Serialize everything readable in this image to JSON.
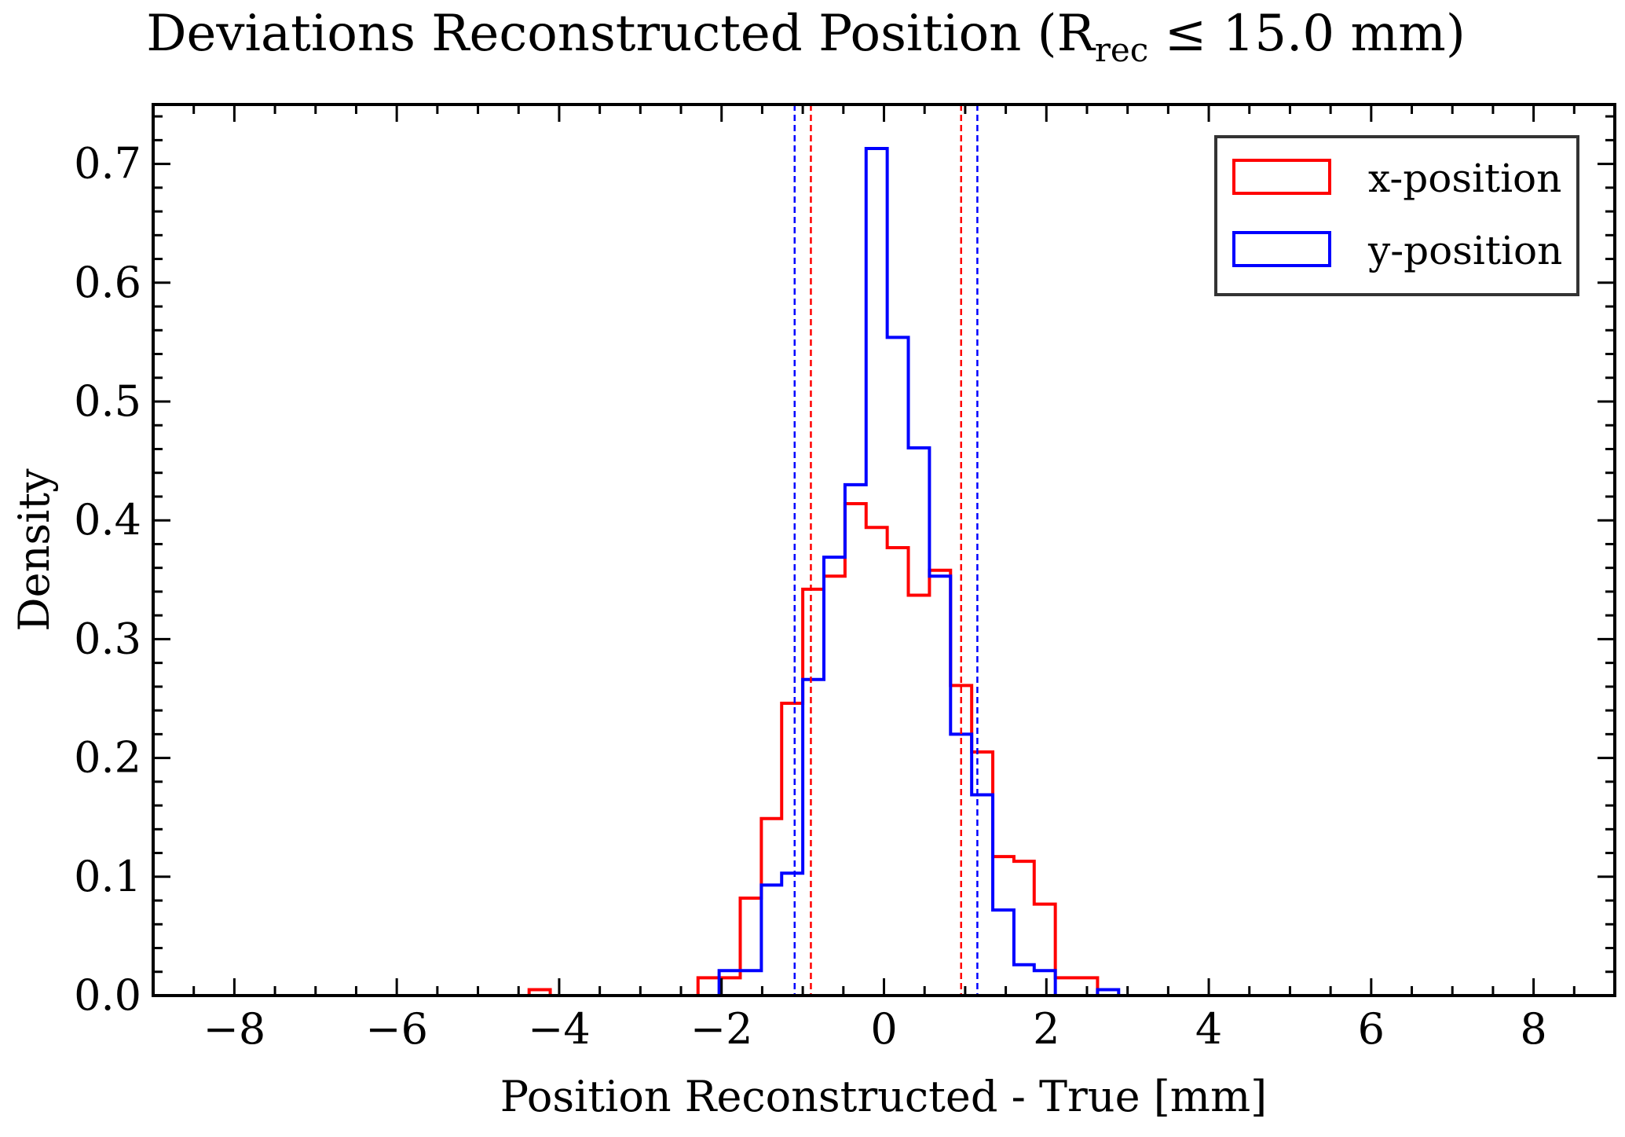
{
  "chart_data": {
    "type": "histogram",
    "title": {
      "main": "Deviations Reconstructed Position (R",
      "subscript": "rec",
      "rest": " ≤ 15.0 mm)"
    },
    "xlabel": "Position Reconstructed - True [mm]",
    "ylabel": "Density",
    "xlim": [
      -9,
      9
    ],
    "ylim": [
      0,
      0.75
    ],
    "x_ticks": [
      -8,
      -6,
      -4,
      -2,
      0,
      2,
      4,
      6,
      8
    ],
    "x_tick_labels": [
      "−8",
      "−6",
      "−4",
      "−2",
      "0",
      "2",
      "4",
      "6",
      "8"
    ],
    "y_ticks": [
      0.0,
      0.1,
      0.2,
      0.3,
      0.4,
      0.5,
      0.6,
      0.7
    ],
    "y_tick_labels": [
      "0.0",
      "0.1",
      "0.2",
      "0.3",
      "0.4",
      "0.5",
      "0.6",
      "0.7"
    ],
    "legend_position": "top-right",
    "grid": false,
    "series": [
      {
        "name": "x-position",
        "color": "#ff0000",
        "bin_edges": [
          -4.37,
          -4.11,
          -2.29,
          -2.03,
          -1.77,
          -1.51,
          -1.26,
          -1.0,
          -0.74,
          -0.48,
          -0.22,
          0.04,
          0.3,
          0.56,
          0.82,
          1.08,
          1.34,
          1.6,
          1.85,
          2.11,
          2.63
        ],
        "values": [
          0.005,
          0,
          0.015,
          0.015,
          0.082,
          0.149,
          0.246,
          0.342,
          0.353,
          0.414,
          0.394,
          0.377,
          0.337,
          0.358,
          0.261,
          0.205,
          0.117,
          0.113,
          0.077,
          0.015
        ],
        "mean_minus_sigma": -0.9,
        "mean_plus_sigma": 0.95
      },
      {
        "name": "y-position",
        "color": "#0000ff",
        "bin_edges": [
          -2.03,
          -1.77,
          -1.51,
          -1.26,
          -1.0,
          -0.74,
          -0.48,
          -0.22,
          0.04,
          0.3,
          0.56,
          0.82,
          1.08,
          1.34,
          1.6,
          1.85,
          2.11,
          2.37,
          2.63,
          2.89
        ],
        "values": [
          0.021,
          0.021,
          0.093,
          0.103,
          0.266,
          0.369,
          0.43,
          0.713,
          0.554,
          0.461,
          0.353,
          0.22,
          0.169,
          0.072,
          0.026,
          0.021,
          0,
          0,
          0.005
        ],
        "mean_minus_sigma": -1.1,
        "mean_plus_sigma": 1.15
      }
    ]
  }
}
